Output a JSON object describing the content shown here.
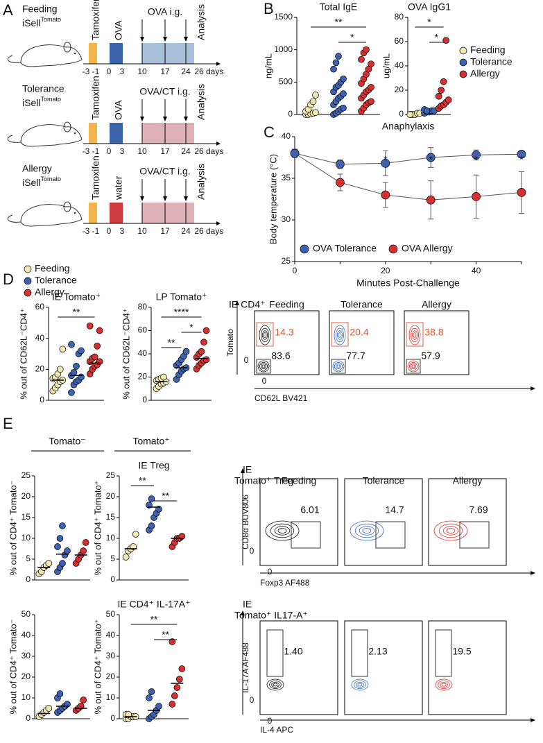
{
  "panels": [
    "A",
    "B",
    "C",
    "D",
    "E"
  ],
  "timeline": {
    "rows": [
      {
        "group": "Feeding",
        "strain": "iSell",
        "strain_sup": "Tomato",
        "step1": "Tamoxifen",
        "step2": "OVA",
        "step2_color": "#3c64ad",
        "gavage": "OVA i.g.",
        "gavage_color": "#a9c0dd",
        "end": "Analysis"
      },
      {
        "group": "Tolerance",
        "strain": "iSell",
        "strain_sup": "Tomato",
        "step1": "Tamoxifen",
        "step2": "OVA",
        "step2_color": "#3c64ad",
        "gavage": "OVA/CT i.g.",
        "gavage_color": "#deb0b8",
        "end": "Analysis"
      },
      {
        "group": "Allergy",
        "strain": "iSell",
        "strain_sup": "Tomato",
        "step1": "Tamoxifen",
        "step2": "water",
        "step2_color": "#cf3b3b",
        "gavage": "OVA/CT i.g.",
        "gavage_color": "#deb0b8",
        "end": "Analysis"
      }
    ],
    "days": [
      "-3",
      "-1",
      "0",
      "3",
      "10",
      "17",
      "24",
      "26"
    ],
    "unit": "days"
  },
  "chart_data": [
    {
      "type": "strip",
      "title": "Total IgE",
      "y_label": "ng/mL",
      "ylim": [
        0,
        1500
      ],
      "yticks": [
        0,
        500,
        1000,
        1500
      ],
      "series": [
        {
          "name": "Feeding",
          "color": "#f1e7b3",
          "values": [
            0,
            0,
            10,
            20,
            30,
            50,
            80,
            150,
            200,
            300
          ]
        },
        {
          "name": "Tolerance",
          "color": "#3f62b0",
          "values": [
            0,
            20,
            50,
            80,
            100,
            150,
            200,
            250,
            280,
            320,
            350,
            420,
            450,
            500,
            550,
            700,
            800,
            900
          ]
        },
        {
          "name": "Allergy",
          "color": "#d63131",
          "values": [
            50,
            100,
            150,
            180,
            200,
            250,
            300,
            350,
            380,
            420,
            480,
            550,
            620,
            700,
            780,
            850,
            950,
            1000
          ]
        }
      ],
      "annotations": [
        {
          "text": "**",
          "between": [
            "Feeding",
            "Allergy"
          ]
        },
        {
          "text": "*",
          "between": [
            "Tolerance",
            "Allergy"
          ]
        }
      ]
    },
    {
      "type": "strip",
      "title": "OVA IgG1",
      "y_label": "ug/mL",
      "ylim": [
        0,
        80
      ],
      "yticks": [
        0,
        20,
        40,
        60,
        80
      ],
      "series": [
        {
          "name": "Feeding",
          "color": "#f1e7b3",
          "values": [
            0,
            0,
            0,
            1,
            1,
            0
          ]
        },
        {
          "name": "Tolerance",
          "color": "#3f62b0",
          "values": [
            1,
            2,
            2,
            3,
            3,
            4,
            3
          ]
        },
        {
          "name": "Allergy",
          "color": "#d63131",
          "values": [
            5,
            7,
            8,
            10,
            12,
            15,
            20,
            27,
            61
          ]
        }
      ],
      "annotations": [
        {
          "text": "*",
          "between": [
            "Feeding",
            "Allergy"
          ]
        },
        {
          "text": "*",
          "between": [
            "Tolerance",
            "Allergy"
          ]
        }
      ]
    },
    {
      "type": "line",
      "title": "Anaphylaxis",
      "y_label": "Body temperature (°C)",
      "x_label": "Minutes Post-Challenge",
      "x": [
        0,
        10,
        20,
        30,
        40,
        50
      ],
      "xlim": [
        0,
        50
      ],
      "xticks": [
        0,
        20,
        40
      ],
      "xminor": [
        10,
        30,
        50
      ],
      "ylim": [
        25,
        40
      ],
      "yticks": [
        25,
        30,
        35,
        40
      ],
      "legend": "bottom",
      "series": [
        {
          "name": "OVA Tolerance",
          "color": "#3f62b0",
          "values": [
            38,
            36.7,
            36.8,
            37.5,
            37.8,
            37.9
          ],
          "errors": [
            0.3,
            0.5,
            1.5,
            1.2,
            0.6,
            0.4
          ]
        },
        {
          "name": "OVA Allergy",
          "color": "#d63131",
          "values": [
            38,
            34.5,
            33,
            32.4,
            32.8,
            33.3
          ],
          "errors": [
            0.5,
            1,
            1.5,
            2.3,
            2.6,
            2.5
          ]
        }
      ],
      "annotations": [
        {
          "text": "*",
          "x": 20
        },
        {
          "text": "*",
          "x": 30
        },
        {
          "text": "*",
          "x": 40
        },
        {
          "text": "*",
          "x": 50
        }
      ]
    },
    {
      "type": "strip",
      "title": "IE Tomato⁺",
      "y_label": "% out of CD62L⁻CD4⁺",
      "ylim": [
        0,
        60
      ],
      "yticks": [
        0,
        20,
        40,
        60
      ],
      "series": [
        {
          "name": "Feeding",
          "color": "#f1e7b3",
          "values": [
            6,
            8,
            10,
            12,
            13,
            14,
            15,
            17,
            20,
            33
          ],
          "mean": 13
        },
        {
          "name": "Tolerance",
          "color": "#3f62b0",
          "values": [
            5,
            10,
            12,
            13,
            15,
            16,
            18,
            22,
            30,
            32,
            36
          ],
          "mean": 16
        },
        {
          "name": "Allergy",
          "color": "#d63131",
          "values": [
            17,
            20,
            22,
            23,
            25,
            25,
            27,
            28,
            35,
            45,
            48
          ],
          "mean": 24
        }
      ],
      "annotations": [
        {
          "text": "**",
          "between": [
            "Feeding",
            "Allergy"
          ]
        }
      ]
    },
    {
      "type": "strip",
      "title": "LP Tomato⁺",
      "y_label": "% out of CD62L⁻CD4⁺",
      "ylim": [
        0,
        80
      ],
      "yticks": [
        0,
        20,
        40,
        60,
        80
      ],
      "series": [
        {
          "name": "Feeding",
          "color": "#f1e7b3",
          "values": [
            10,
            12,
            14,
            15,
            16,
            17,
            18,
            19,
            20
          ],
          "mean": 16
        },
        {
          "name": "Tolerance",
          "color": "#3f62b0",
          "values": [
            18,
            22,
            25,
            27,
            28,
            30,
            32,
            35,
            38,
            42
          ],
          "mean": 28
        },
        {
          "name": "Allergy",
          "color": "#d63131",
          "values": [
            27,
            30,
            32,
            34,
            35,
            37,
            40,
            42,
            50,
            60
          ],
          "mean": 36
        }
      ],
      "annotations": [
        {
          "text": "****",
          "between": [
            "Feeding",
            "Allergy"
          ]
        },
        {
          "text": "*",
          "between": [
            "Tolerance",
            "Allergy"
          ]
        },
        {
          "text": "**",
          "between": [
            "Feeding",
            "Tolerance"
          ]
        }
      ]
    },
    {
      "type": "strip",
      "y_label": "% out of  CD4⁺ Tomato⁻",
      "ylim": [
        0,
        25
      ],
      "yticks": [
        0,
        5,
        10,
        15,
        20,
        25
      ],
      "series": [
        {
          "name": "Feeding",
          "color": "#f1e7b3",
          "values": [
            1.5,
            2,
            3,
            3.5,
            4
          ],
          "mean": 3
        },
        {
          "name": "Tolerance",
          "color": "#3f62b0",
          "values": [
            2,
            3,
            4,
            6,
            7,
            8,
            10,
            13
          ],
          "mean": 6.2
        },
        {
          "name": "Allergy",
          "color": "#d63131",
          "values": [
            4,
            5,
            6,
            7,
            9
          ],
          "mean": 6
        }
      ]
    },
    {
      "type": "strip",
      "title": "IE Treg",
      "y_label": "% out of  CD4⁺ Tomato⁺",
      "ylim": [
        0,
        25
      ],
      "yticks": [
        0,
        5,
        10,
        15,
        20,
        25
      ],
      "series": [
        {
          "name": "Feeding",
          "color": "#f1e7b3",
          "values": [
            5.5,
            7,
            7.5,
            8,
            11
          ],
          "mean": 7.5
        },
        {
          "name": "Tolerance",
          "color": "#3f62b0",
          "values": [
            12,
            13,
            15,
            16,
            17,
            18,
            19.5
          ],
          "mean": 17.5
        },
        {
          "name": "Allergy",
          "color": "#d63131",
          "values": [
            8,
            9,
            10,
            10,
            10.5
          ],
          "mean": 10
        }
      ],
      "annotations": [
        {
          "text": "**",
          "between": [
            "Feeding",
            "Tolerance"
          ]
        },
        {
          "text": "**",
          "between": [
            "Tolerance",
            "Allergy"
          ]
        }
      ]
    },
    {
      "type": "strip",
      "y_label": "% out of  CD4⁺ Tomato⁻",
      "ylim": [
        0,
        50
      ],
      "yticks": [
        0,
        10,
        20,
        30,
        40,
        50
      ],
      "series": [
        {
          "name": "Feeding",
          "color": "#f1e7b3",
          "values": [
            1,
            2,
            3,
            4,
            5
          ],
          "mean": 2.5
        },
        {
          "name": "Tolerance",
          "color": "#3f62b0",
          "values": [
            3,
            4,
            5,
            6,
            7,
            10,
            12
          ],
          "mean": 6
        },
        {
          "name": "Allergy",
          "color": "#d63131",
          "values": [
            4,
            5,
            6,
            9
          ],
          "mean": 5
        }
      ]
    },
    {
      "type": "strip",
      "title": "IE CD4⁺ IL-17A⁺",
      "y_label": "% out of CD4⁺ Tomato⁺",
      "ylim": [
        0,
        50
      ],
      "yticks": [
        0,
        10,
        20,
        30,
        40,
        50
      ],
      "series": [
        {
          "name": "Feeding",
          "color": "#f1e7b3",
          "values": [
            0,
            0,
            1,
            1,
            1,
            2,
            2
          ],
          "mean": 1
        },
        {
          "name": "Tolerance",
          "color": "#3f62b0",
          "values": [
            0,
            1,
            2,
            4,
            6,
            10,
            13
          ],
          "mean": 4
        },
        {
          "name": "Allergy",
          "color": "#d63131",
          "values": [
            7,
            11,
            15,
            19,
            24,
            37
          ],
          "mean": 17
        }
      ],
      "annotations": [
        {
          "text": "**",
          "between": [
            "Feeding",
            "Allergy"
          ]
        },
        {
          "text": "**",
          "between": [
            "Tolerance",
            "Allergy"
          ]
        }
      ]
    }
  ],
  "e_headings": [
    "Tomato⁻",
    "Tomato⁺"
  ],
  "flow": [
    {
      "title": [
        "IE CD4⁺"
      ],
      "columns": [
        "Feeding",
        "Tolerance",
        "Allergy"
      ],
      "y_label": "Tomato",
      "x_label": "CD62L BV421",
      "zero": "0",
      "gates": [
        [
          "14.3",
          "83.6"
        ],
        [
          "20.4",
          "77.7"
        ],
        [
          "38.8",
          "57.9"
        ]
      ]
    },
    {
      "title": [
        "IE",
        "Tomato⁺ Treg"
      ],
      "columns": [
        "Feeding",
        "Tolerance",
        "Allergy"
      ],
      "y_label": "CD8α BUV806",
      "x_label": "Foxp3 AF488",
      "zero": "0",
      "gates": [
        [
          "6.01"
        ],
        [
          "14.7"
        ],
        [
          "7.69"
        ]
      ]
    },
    {
      "title": [
        "IE",
        "Tomato⁺ IL17-A⁺"
      ],
      "y_label": "IL-17A AF488",
      "x_label": "IL-4 APC",
      "zero": "0",
      "gates": [
        [
          "1.40"
        ],
        [
          "2.13"
        ],
        [
          "19.5"
        ]
      ]
    }
  ]
}
